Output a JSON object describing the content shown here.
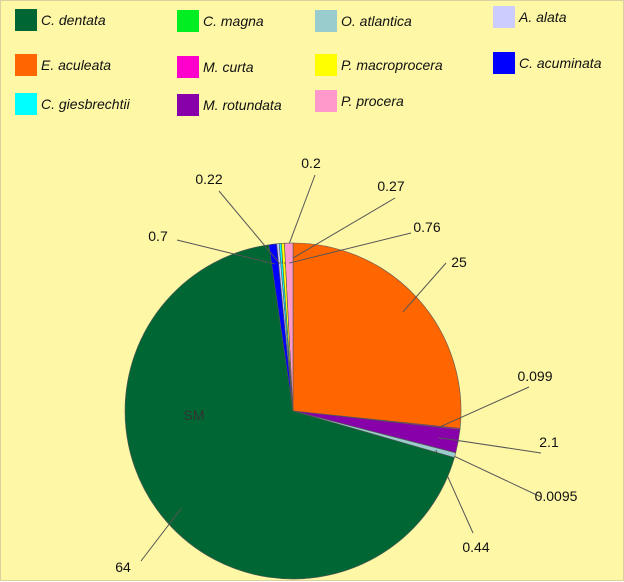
{
  "chart_data": {
    "type": "pie",
    "title": "",
    "legend_position": "top",
    "legend": [
      {
        "name": "C. dentata",
        "color": "#006633"
      },
      {
        "name": "C. magna",
        "color": "#00ee22"
      },
      {
        "name": "O. atlantica",
        "color": "#99cccc"
      },
      {
        "name": "A. alata",
        "color": "#ccccff"
      },
      {
        "name": "E. aculeata",
        "color": "#ff6600"
      },
      {
        "name": "M. curta",
        "color": "#ff00cc"
      },
      {
        "name": "P. macroprocera",
        "color": "#ffff00"
      },
      {
        "name": "C. acuminata",
        "color": "#0000ff"
      },
      {
        "name": "C. giesbrechtii",
        "color": "#00ffff"
      },
      {
        "name": "M. rotundata",
        "color": "#8800aa"
      },
      {
        "name": "P. procera",
        "color": "#ff99cc"
      }
    ],
    "slices": [
      {
        "label": "25",
        "value": 25,
        "color": "#ff6600"
      },
      {
        "label": "0.099",
        "value": 0.099,
        "color": "#ff00cc"
      },
      {
        "label": "2.1",
        "value": 2.1,
        "color": "#8800aa"
      },
      {
        "label": "0.0095",
        "value": 0.0095,
        "color": "#00ee22"
      },
      {
        "label": "0.44",
        "value": 0.44,
        "color": "#99cccc"
      },
      {
        "label": "64",
        "value": 64,
        "color": "#006633"
      },
      {
        "label": "0.7",
        "value": 0.7,
        "color": "#0000ff"
      },
      {
        "label": "0.22",
        "value": 0.22,
        "color": "#ccccff"
      },
      {
        "label": "0.2",
        "value": 0.2,
        "color": "#00ffff"
      },
      {
        "label": "0.27",
        "value": 0.27,
        "color": "#ffff00"
      },
      {
        "label": "0.76",
        "value": 0.76,
        "color": "#ff99cc"
      }
    ],
    "annotation": "SM"
  }
}
